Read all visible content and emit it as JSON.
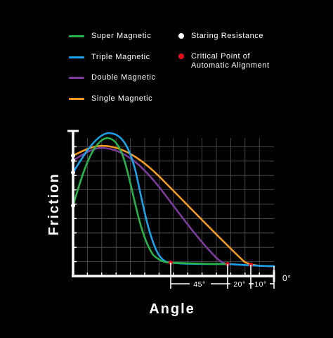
{
  "legend": {
    "lines": [
      {
        "label": "Super Magnetic",
        "color": "#27b34a"
      },
      {
        "label": "Triple Magnetic",
        "color": "#1aa3e8"
      },
      {
        "label": "Double Magnetic",
        "color": "#7b3b9b"
      },
      {
        "label": "Single Magnetic",
        "color": "#f29a22"
      }
    ],
    "dots": [
      {
        "label": "Staring Resistance",
        "color": "#ffffff"
      },
      {
        "label": "Critical Point of\nAutomatic Alignment",
        "color": "#e3101c"
      }
    ]
  },
  "chart_data": {
    "type": "line",
    "xlabel": "Angle",
    "ylabel": "Friction",
    "x_direction": "decreasing",
    "x_ticks": [
      "45°",
      "20°",
      "10°",
      "0°"
    ],
    "grid": true,
    "series": [
      {
        "name": "Super Magnetic",
        "color": "#27b34a"
      },
      {
        "name": "Triple Magnetic",
        "color": "#1aa3e8"
      },
      {
        "name": "Double Magnetic",
        "color": "#7b3b9b"
      },
      {
        "name": "Single Magnetic",
        "color": "#f29a22"
      }
    ]
  }
}
